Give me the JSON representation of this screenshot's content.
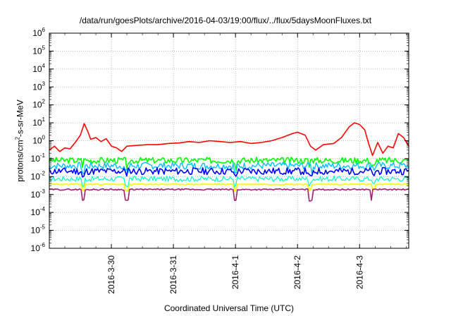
{
  "chart_data": {
    "type": "line",
    "title": "/data/run/goesPlots/archive/2016-04-03/19:00/flux/../flux/5daysMoonFluxes.txt",
    "xlabel": "Coordinated Universal Time (UTC)",
    "ylabel_parts": [
      "protons/cm",
      "2",
      "-s-sr-MeV"
    ],
    "y_scale": "log",
    "ylim": [
      1e-06,
      1000000.0
    ],
    "y_ticks": [
      {
        "base": "10",
        "exp": "-6",
        "value": 1e-06
      },
      {
        "base": "10",
        "exp": "-5",
        "value": 1e-05
      },
      {
        "base": "10",
        "exp": "-4",
        "value": 0.0001
      },
      {
        "base": "10",
        "exp": "-3",
        "value": 0.001
      },
      {
        "base": "10",
        "exp": "-2",
        "value": 0.01
      },
      {
        "base": "10",
        "exp": "-1",
        "value": 0.1
      },
      {
        "base": "10",
        "exp": "0",
        "value": 1
      },
      {
        "base": "10",
        "exp": "1",
        "value": 10
      },
      {
        "base": "10",
        "exp": "2",
        "value": 100
      },
      {
        "base": "10",
        "exp": "3",
        "value": 1000
      },
      {
        "base": "10",
        "exp": "4",
        "value": 10000
      },
      {
        "base": "10",
        "exp": "5",
        "value": 100000
      },
      {
        "base": "10",
        "exp": "6",
        "value": 1000000
      }
    ],
    "xlim": [
      "2016-03-29T00:00",
      "2016-04-03T19:00"
    ],
    "x_ticks": [
      {
        "label": "2016-3-30",
        "value": "2016-03-30T00:00"
      },
      {
        "label": "2016-3-31",
        "value": "2016-03-31T00:00"
      },
      {
        "label": "2016-4-1",
        "value": "2016-04-01T00:00"
      },
      {
        "label": "2016-4-2",
        "value": "2016-04-02T00:00"
      },
      {
        "label": "2016-4-3",
        "value": "2016-04-03T00:00"
      }
    ],
    "grid": true,
    "legend": "none",
    "series": [
      {
        "color": "#ff0000",
        "width": 1.6,
        "points": [
          [
            "2016-03-29T00:00",
            0.3
          ],
          [
            "2016-03-29T02:00",
            0.5
          ],
          [
            "2016-03-29T04:00",
            0.25
          ],
          [
            "2016-03-29T06:00",
            0.4
          ],
          [
            "2016-03-29T08:00",
            0.35
          ],
          [
            "2016-03-29T10:00",
            0.8
          ],
          [
            "2016-03-29T12:00",
            2
          ],
          [
            "2016-03-29T13:30",
            9
          ],
          [
            "2016-03-29T15:00",
            3
          ],
          [
            "2016-03-29T16:00",
            1.2
          ],
          [
            "2016-03-29T18:00",
            1.5
          ],
          [
            "2016-03-29T20:00",
            0.9
          ],
          [
            "2016-03-29T22:00",
            1.3
          ],
          [
            "2016-03-30T00:00",
            0.5
          ],
          [
            "2016-03-30T02:00",
            0.4
          ],
          [
            "2016-03-30T04:00",
            0.25
          ],
          [
            "2016-03-30T06:00",
            0.5
          ],
          [
            "2016-03-30T10:00",
            0.55
          ],
          [
            "2016-03-30T14:00",
            0.6
          ],
          [
            "2016-03-30T18:00",
            0.6
          ],
          [
            "2016-03-30T22:00",
            0.7
          ],
          [
            "2016-03-31T02:00",
            0.75
          ],
          [
            "2016-03-31T06:00",
            0.9
          ],
          [
            "2016-03-31T10:00",
            0.8
          ],
          [
            "2016-03-31T14:00",
            1.0
          ],
          [
            "2016-03-31T18:00",
            0.9
          ],
          [
            "2016-03-31T22:00",
            0.8
          ],
          [
            "2016-04-01T02:00",
            0.9
          ],
          [
            "2016-04-01T06:00",
            0.7
          ],
          [
            "2016-04-01T10:00",
            0.8
          ],
          [
            "2016-04-01T14:00",
            1.0
          ],
          [
            "2016-04-01T18:00",
            1.5
          ],
          [
            "2016-04-01T22:00",
            2.5
          ],
          [
            "2016-04-02T00:00",
            3.0
          ],
          [
            "2016-04-02T03:00",
            2.0
          ],
          [
            "2016-04-02T05:00",
            0.5
          ],
          [
            "2016-04-02T07:00",
            0.3
          ],
          [
            "2016-04-02T10:00",
            0.6
          ],
          [
            "2016-04-02T14:00",
            0.7
          ],
          [
            "2016-04-02T17:00",
            1.5
          ],
          [
            "2016-04-02T20:00",
            6
          ],
          [
            "2016-04-02T22:00",
            10
          ],
          [
            "2016-04-03T00:00",
            8
          ],
          [
            "2016-04-03T02:00",
            4
          ],
          [
            "2016-04-03T03:30",
            0.7
          ],
          [
            "2016-04-03T05:00",
            0.15
          ],
          [
            "2016-04-03T07:00",
            0.8
          ],
          [
            "2016-04-03T09:00",
            0.2
          ],
          [
            "2016-04-03T11:00",
            0.5
          ],
          [
            "2016-04-03T13:00",
            0.4
          ],
          [
            "2016-04-03T15:00",
            2.5
          ],
          [
            "2016-04-03T17:00",
            1.5
          ],
          [
            "2016-04-03T19:00",
            0.5
          ]
        ]
      },
      {
        "color": "#00ff00",
        "width": 1.6,
        "base": 0.08,
        "amp": 0.35,
        "seed": 3
      },
      {
        "color": "#00c0ff",
        "width": 1.4,
        "base": 0.04,
        "amp": 0.4,
        "seed": 7
      },
      {
        "color": "#0000ff",
        "width": 1.6,
        "base": 0.02,
        "amp": 0.4,
        "seed": 11
      },
      {
        "color": "#00ffc0",
        "width": 1.2,
        "base": 0.0075,
        "amp": 0.3,
        "seed": 17
      },
      {
        "color": "#ffff00",
        "width": 1.8,
        "base": 0.0037,
        "amp": 0.06,
        "seed": 23
      },
      {
        "color": "#a02070",
        "width": 1.6,
        "base": 0.0019,
        "amp": 0.08,
        "seed": 29
      }
    ]
  }
}
